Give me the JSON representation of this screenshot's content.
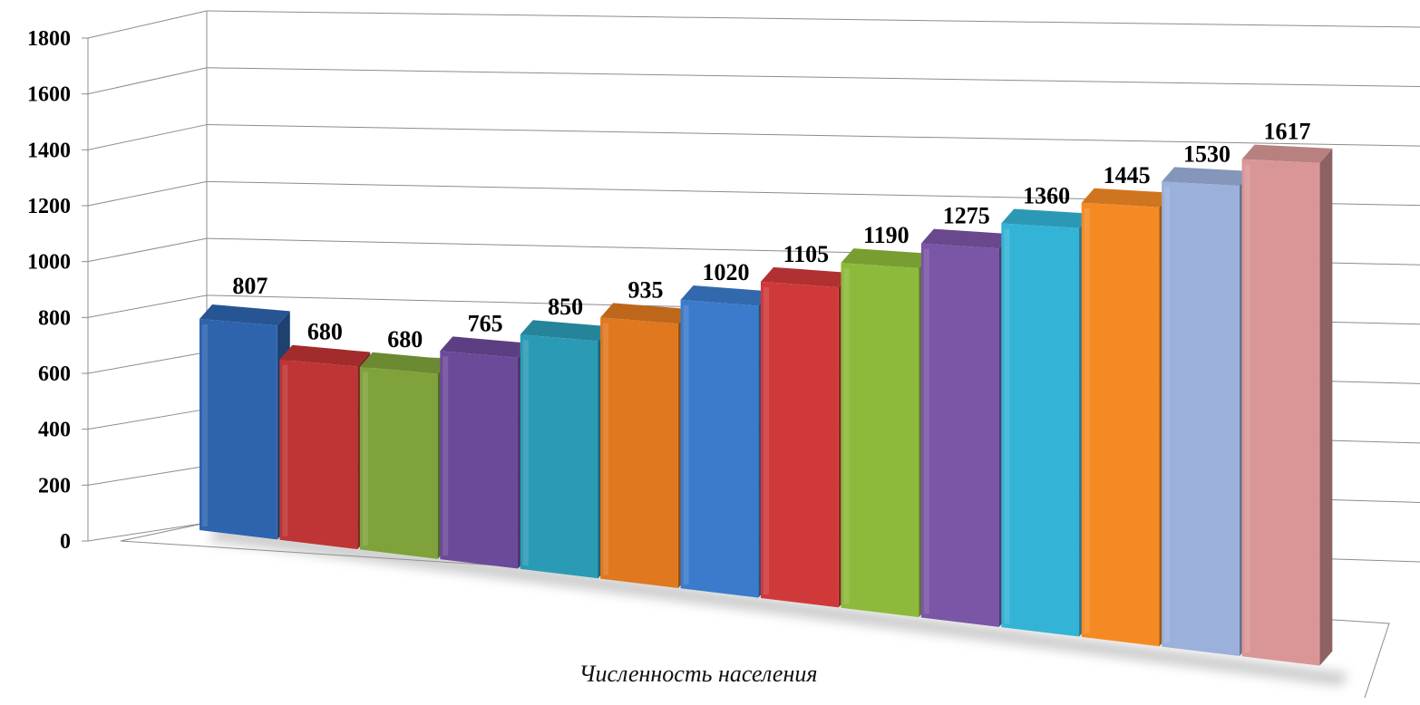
{
  "chart_data": {
    "type": "bar",
    "style": "3d-columns",
    "title": "",
    "xlabel": "Численность населения",
    "ylabel": "",
    "ylim": [
      0,
      1800
    ],
    "yticks": [
      0,
      200,
      400,
      600,
      800,
      1000,
      1200,
      1400,
      1600,
      1800
    ],
    "grid": true,
    "legend": "none",
    "values": [
      807,
      680,
      680,
      765,
      850,
      935,
      1020,
      1105,
      1190,
      1275,
      1360,
      1445,
      1530,
      1617
    ],
    "bar_colors": [
      "#2E64AE",
      "#BF3434",
      "#7FA23A",
      "#6C4A9A",
      "#2B9BB5",
      "#E0781F",
      "#3B7BCB",
      "#D0393A",
      "#8DBA3B",
      "#7B55A6",
      "#33B4D6",
      "#F58A25",
      "#9BB0DA",
      "#DA9697"
    ],
    "label_colors": [
      "#000000",
      "#000000",
      "#000000",
      "#000000",
      "#000000",
      "#000000",
      "#000000",
      "#000000",
      "#000000",
      "#000000",
      "#000000",
      "#000000",
      "#000000",
      "#FF0000"
    ]
  }
}
